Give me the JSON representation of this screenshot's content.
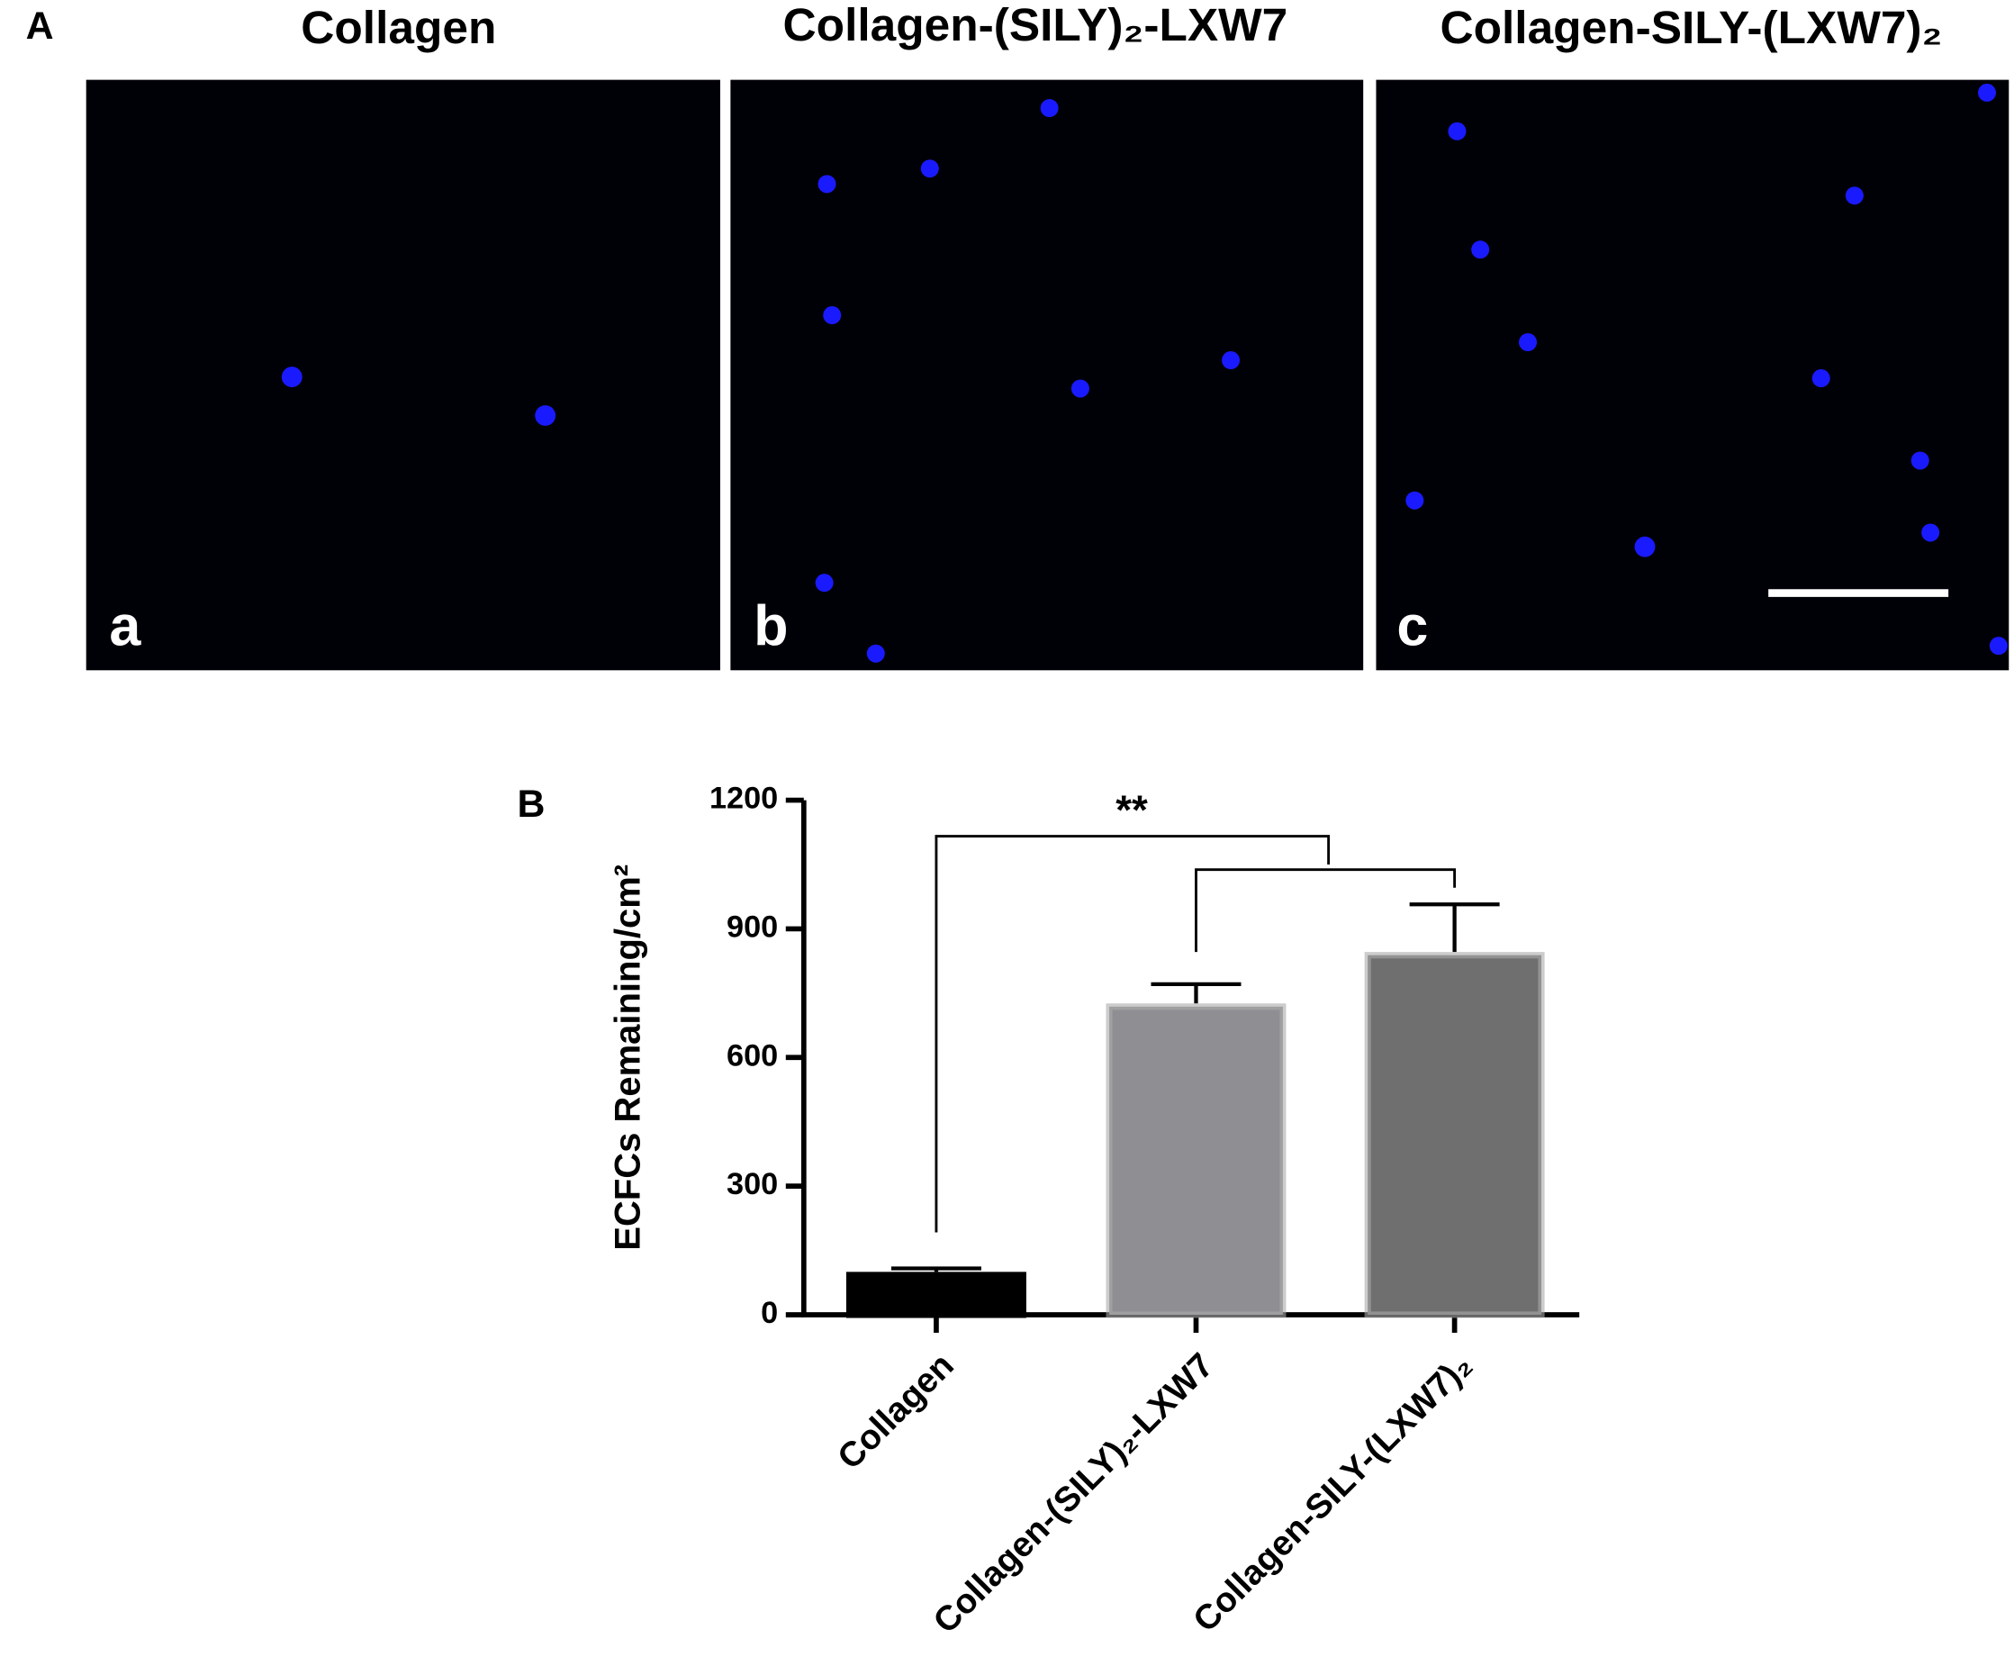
{
  "panel_a": {
    "label": "A",
    "images": [
      {
        "title": "Collagen",
        "letter": "a"
      },
      {
        "title": "Collagen-(SILY)₂-LXW7",
        "letter": "b"
      },
      {
        "title": "Collagen-SILY-(LXW7)₂",
        "letter": "c"
      }
    ]
  },
  "chart_data": {
    "type": "bar",
    "panel_label": "B",
    "y_label": "ECFCs Remaining/cm²",
    "categories": [
      "Collagen",
      "Collagen-(SILY)₂-LXW7",
      "Collagen-SILY-(LXW7)₂"
    ],
    "values": [
      100,
      726,
      846
    ],
    "errors": [
      8,
      45,
      111
    ],
    "colors": [
      "#000000",
      "#8e8e93",
      "#6f6f6f"
    ],
    "ylim": [
      0,
      1200
    ],
    "yticks": [
      0,
      300,
      600,
      900,
      1200
    ],
    "annotation": "**"
  }
}
